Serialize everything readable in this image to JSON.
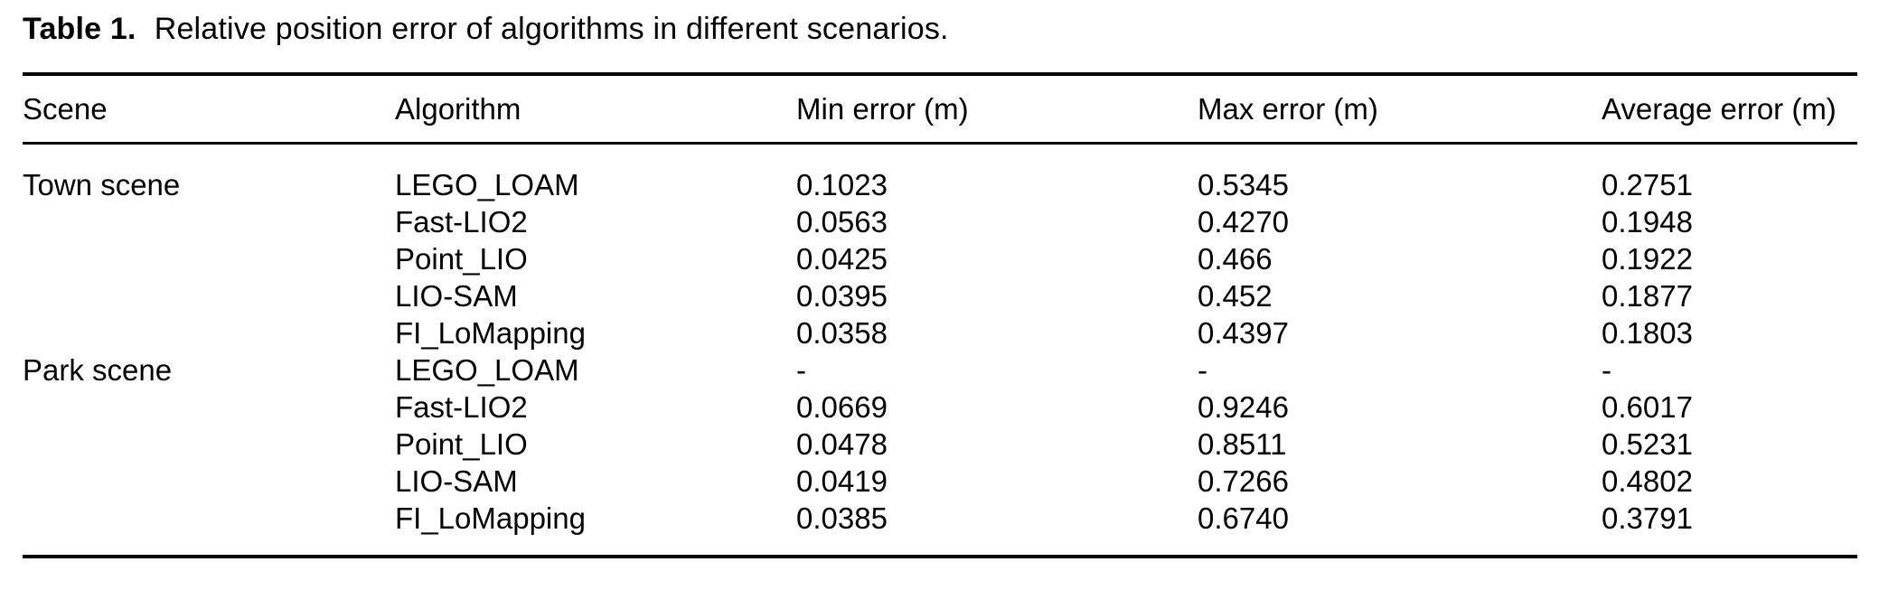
{
  "caption": {
    "label": "Table 1.",
    "text": "Relative position error of algorithms in different scenarios."
  },
  "table": {
    "columns": {
      "scene": "Scene",
      "algorithm": "Algorithm",
      "min": "Min error (m)",
      "max": "Max error (m)",
      "avg": "Average error (m)"
    },
    "rows": [
      {
        "scene": "Town scene",
        "algorithm": "LEGO_LOAM",
        "min": "0.1023",
        "max": "0.5345",
        "avg": "0.2751"
      },
      {
        "scene": "",
        "algorithm": "Fast-LIO2",
        "min": "0.0563",
        "max": "0.4270",
        "avg": "0.1948"
      },
      {
        "scene": "",
        "algorithm": "Point_LIO",
        "min": "0.0425",
        "max": "0.466",
        "avg": "0.1922"
      },
      {
        "scene": "",
        "algorithm": "LIO-SAM",
        "min": "0.0395",
        "max": "0.452",
        "avg": "0.1877"
      },
      {
        "scene": "",
        "algorithm": "FI_LoMapping",
        "min": "0.0358",
        "max": "0.4397",
        "avg": "0.1803"
      },
      {
        "scene": "Park scene",
        "algorithm": "LEGO_LOAM",
        "min": "-",
        "max": "-",
        "avg": "-"
      },
      {
        "scene": "",
        "algorithm": "Fast-LIO2",
        "min": "0.0669",
        "max": "0.9246",
        "avg": "0.6017"
      },
      {
        "scene": "",
        "algorithm": "Point_LIO",
        "min": "0.0478",
        "max": "0.8511",
        "avg": "0.5231"
      },
      {
        "scene": "",
        "algorithm": "LIO-SAM",
        "min": "0.0419",
        "max": "0.7266",
        "avg": "0.4802"
      },
      {
        "scene": "",
        "algorithm": "FI_LoMapping",
        "min": "0.0385",
        "max": "0.6740",
        "avg": "0.3791"
      }
    ]
  }
}
